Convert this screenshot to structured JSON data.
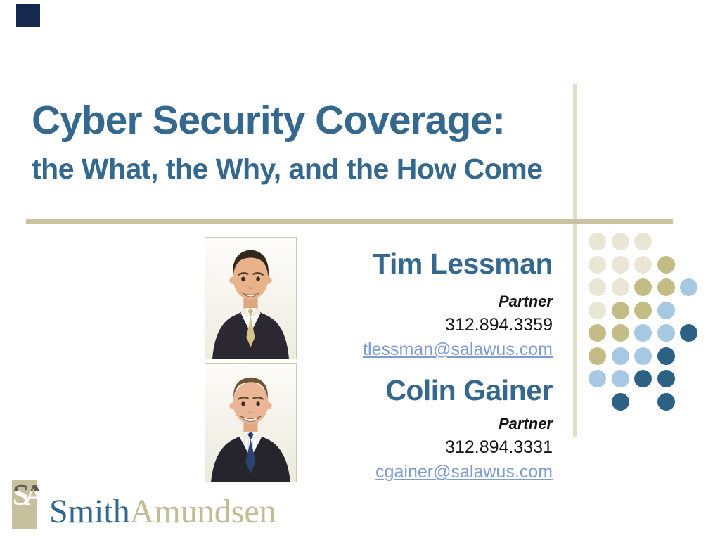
{
  "slide": {
    "title": "Cyber Security Coverage:",
    "subtitle": "the What, the Why, and the How Come"
  },
  "speakers": [
    {
      "name": "Tim Lessman",
      "role": "Partner",
      "phone": "312.894.3359",
      "email": "tlessman@salawus.com"
    },
    {
      "name": "Colin Gainer",
      "role": "Partner",
      "phone": "312.894.3331",
      "email": "cgainer@salawus.com"
    }
  ],
  "logo": {
    "monogram": "SA",
    "word_primary": "Smith",
    "word_secondary": "Amundsen"
  },
  "colors": {
    "title_blue": "#35688e",
    "link_blue": "#7e9cd3",
    "text_black": "#161616",
    "horizontal_divider": "#c7c3a0",
    "vertical_divider": "#e0ddc9",
    "corner_square_navy": "#15294e",
    "logo_square_tan": "#c6c09c",
    "logo_word_tan": "#c2bc96"
  },
  "dots": {
    "cell": 32.5,
    "diameter": 25,
    "colors": {
      "beige": "#e9e6d6",
      "khaki": "#c3bc85",
      "blue": "#a6c8e3",
      "navy": "#2c6184"
    },
    "pattern": [
      [
        "beige",
        "beige",
        "beige",
        null,
        null
      ],
      [
        "beige",
        "beige",
        "beige",
        "khaki",
        null
      ],
      [
        "beige",
        "beige",
        "khaki",
        "khaki",
        "blue"
      ],
      [
        "beige",
        "khaki",
        "khaki",
        "blue",
        null
      ],
      [
        "khaki",
        "khaki",
        "blue",
        "blue",
        "navy"
      ],
      [
        "khaki",
        "blue",
        "blue",
        "navy",
        null
      ],
      [
        "blue",
        "blue",
        "navy",
        "navy",
        null
      ],
      [
        null,
        "navy",
        null,
        "navy",
        null
      ]
    ]
  }
}
